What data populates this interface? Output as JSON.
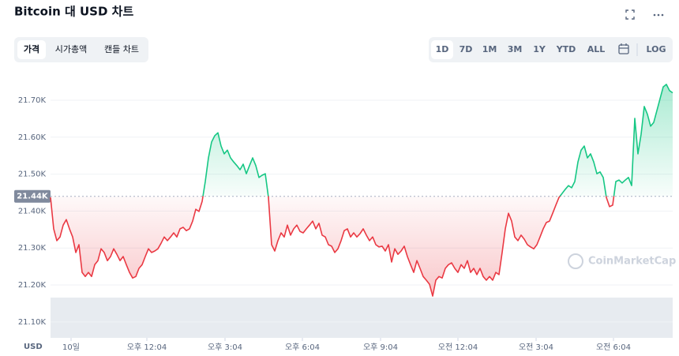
{
  "header": {
    "title": "Bitcoin 대 USD 차트"
  },
  "tabs": [
    "가격",
    "시가총액",
    "캔들 차트"
  ],
  "ranges": [
    "1D",
    "7D",
    "1M",
    "3M",
    "1Y",
    "YTD",
    "ALL"
  ],
  "log_button": "LOG",
  "chart_data": {
    "type": "line",
    "ylabel": "USD",
    "watermark": "CoinMarketCap",
    "up_color": "#16c784",
    "down_color": "#ea3943",
    "grid": true,
    "baseline": {
      "value": 21440,
      "label": "21.44K"
    },
    "xlim": [
      0,
      197
    ],
    "xticks": [
      {
        "value": 6.5,
        "label": "10일"
      },
      {
        "value": 30.5,
        "label": "오후 12:04"
      },
      {
        "value": 55.25,
        "label": "오후 3:04"
      },
      {
        "value": 79.75,
        "label": "오후 6:04"
      },
      {
        "value": 104.5,
        "label": "오후 9:04"
      },
      {
        "value": 129,
        "label": "오전 12:04"
      },
      {
        "value": 153.75,
        "label": "오전 3:04"
      },
      {
        "value": 178.25,
        "label": "오전 6:04"
      }
    ],
    "ylim": [
      21057,
      21779
    ],
    "yticks": [
      {
        "value": 21100,
        "label": "21.10K"
      },
      {
        "value": 21200,
        "label": "21.20K"
      },
      {
        "value": 21300,
        "label": "21.30K"
      },
      {
        "value": 21400,
        "label": "21.40K"
      },
      {
        "value": 21500,
        "label": "21.50K"
      },
      {
        "value": 21600,
        "label": "21.60K"
      },
      {
        "value": 21700,
        "label": "21.70K"
      }
    ],
    "values": [
      21437,
      21352,
      21320,
      21330,
      21362,
      21377,
      21352,
      21330,
      21288,
      21309,
      21234,
      21223,
      21234,
      21223,
      21255,
      21266,
      21298,
      21288,
      21266,
      21277,
      21298,
      21283,
      21266,
      21277,
      21255,
      21234,
      21219,
      21223,
      21245,
      21255,
      21277,
      21298,
      21288,
      21292,
      21298,
      21313,
      21330,
      21320,
      21330,
      21341,
      21330,
      21352,
      21356,
      21347,
      21352,
      21373,
      21405,
      21399,
      21426,
      21480,
      21544,
      21587,
      21604,
      21612,
      21576,
      21555,
      21565,
      21544,
      21533,
      21523,
      21512,
      21527,
      21501,
      21523,
      21544,
      21523,
      21491,
      21497,
      21501,
      21437,
      21309,
      21292,
      21320,
      21341,
      21330,
      21362,
      21335,
      21352,
      21362,
      21345,
      21341,
      21352,
      21362,
      21373,
      21352,
      21367,
      21335,
      21330,
      21309,
      21305,
      21288,
      21298,
      21320,
      21347,
      21352,
      21330,
      21341,
      21330,
      21339,
      21352,
      21335,
      21320,
      21330,
      21309,
      21303,
      21305,
      21292,
      21309,
      21262,
      21298,
      21283,
      21292,
      21305,
      21277,
      21255,
      21234,
      21266,
      21245,
      21223,
      21213,
      21202,
      21170,
      21213,
      21223,
      21219,
      21245,
      21255,
      21260,
      21245,
      21234,
      21255,
      21245,
      21266,
      21234,
      21245,
      21228,
      21245,
      21223,
      21213,
      21223,
      21213,
      21234,
      21228,
      21288,
      21352,
      21394,
      21373,
      21330,
      21320,
      21335,
      21324,
      21309,
      21303,
      21298,
      21309,
      21330,
      21352,
      21369,
      21373,
      21394,
      21416,
      21437,
      21448,
      21459,
      21469,
      21463,
      21480,
      21533,
      21565,
      21576,
      21544,
      21555,
      21533,
      21501,
      21506,
      21491,
      21437,
      21412,
      21416,
      21480,
      21484,
      21476,
      21484,
      21491,
      21469,
      21651,
      21555,
      21608,
      21683,
      21662,
      21630,
      21640,
      21672,
      21704,
      21736,
      21743,
      21726,
      21720
    ]
  }
}
